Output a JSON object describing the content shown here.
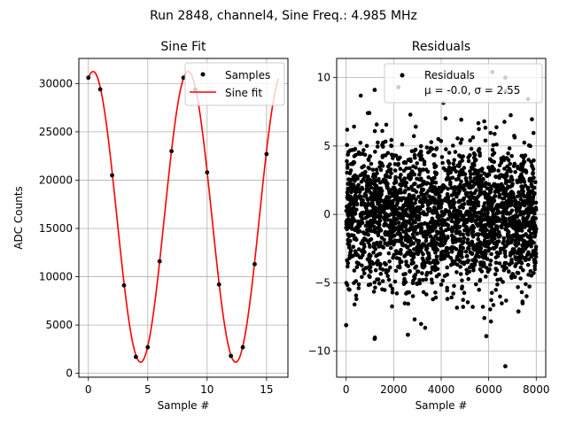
{
  "suptitle": "Run 2848, channel4, Sine Freq.: 4.985 MHz",
  "colors": {
    "samples": "#000000",
    "fit": "#ff0000",
    "residuals": "#000000",
    "grid": "#b0b0b0"
  },
  "chart_data": [
    {
      "type": "line",
      "title": "Sine Fit",
      "xlabel": "Sample #",
      "ylabel": "ADC Counts",
      "xlim": [
        -0.8,
        16.8
      ],
      "ylim": [
        -400,
        32600
      ],
      "xticks": [
        0,
        5,
        10,
        15
      ],
      "yticks": [
        0,
        5000,
        10000,
        15000,
        20000,
        25000,
        30000
      ],
      "grid": true,
      "legend": {
        "position": "upper right",
        "entries": [
          "Samples",
          "Sine fit"
        ]
      },
      "series": [
        {
          "name": "Samples",
          "style": "scatter",
          "x": [
            0,
            1,
            2,
            3,
            4,
            5,
            6,
            7,
            8,
            9,
            10,
            11,
            12,
            13,
            14,
            15
          ],
          "y": [
            30600,
            29400,
            20500,
            9100,
            1700,
            2700,
            11600,
            23000,
            30600,
            29400,
            20800,
            9200,
            1800,
            2700,
            11300,
            22700
          ]
        },
        {
          "name": "Sine fit",
          "style": "line",
          "model": {
            "offset": 16200,
            "amplitude": 15050,
            "period": 8.0,
            "peak_x": 0.4
          },
          "x_range": [
            0,
            16
          ]
        }
      ]
    },
    {
      "type": "scatter",
      "title": "Residuals",
      "xlabel": "Sample #",
      "xlim": [
        -400,
        8400
      ],
      "ylim": [
        -11.9,
        11.4
      ],
      "xticks": [
        0,
        2000,
        4000,
        6000,
        8000
      ],
      "yticks": [
        -10,
        -5,
        0,
        5,
        10
      ],
      "grid": true,
      "legend": {
        "position": "upper right",
        "entries": [
          "Residuals",
          "μ = -0.0, σ = 2.55"
        ]
      },
      "stats": {
        "mean": -0.0,
        "sigma": 2.55,
        "n": 8000
      },
      "series": [
        {
          "name": "Residuals",
          "outliers": [
            {
              "x": 0,
              "y": -8.1
            },
            {
              "x": 1200,
              "y": -9.1
            },
            {
              "x": 1200,
              "y": 9.1
            },
            {
              "x": 2600,
              "y": -8.8
            },
            {
              "x": 5900,
              "y": -8.9
            },
            {
              "x": 6150,
              "y": 10.4
            },
            {
              "x": 6700,
              "y": -11.1
            },
            {
              "x": 6700,
              "y": 10.0
            },
            {
              "x": 2200,
              "y": 9.3
            },
            {
              "x": 7250,
              "y": -7.1
            }
          ]
        }
      ]
    }
  ]
}
